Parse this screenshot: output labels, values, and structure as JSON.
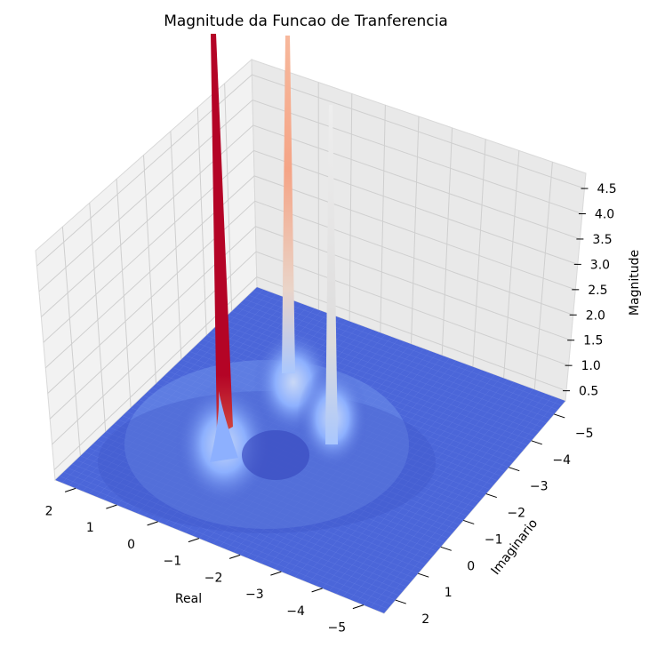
{
  "chart_data": {
    "type": "surface3d",
    "title": "Magnitude da Funcao de Tranferencia",
    "xlabel": "Real",
    "ylabel": "Imaginario",
    "zlabel": "Magnitude",
    "colormap": "coolwarm",
    "grid": true,
    "x_ticks": [
      "2",
      "1",
      "0",
      "−1",
      "−2",
      "−3",
      "−4",
      "−5"
    ],
    "y_ticks": [
      "−5",
      "−4",
      "−3",
      "−2",
      "−1",
      "0",
      "1",
      "2"
    ],
    "z_ticks": [
      "0.5",
      "1.0",
      "1.5",
      "2.0",
      "2.5",
      "3.0",
      "3.5",
      "4.0",
      "4.5"
    ],
    "xlim": [
      -5.5,
      2.5
    ],
    "ylim": [
      -5.5,
      2.5
    ],
    "zlim": [
      0.3,
      4.8
    ],
    "base_magnitude": 0.3,
    "peaks": [
      {
        "real": 0,
        "imag": -1.5,
        "magnitude_color": "#b40426"
      },
      {
        "real": -1.5,
        "imag": -1.5,
        "magnitude_color": "#f5a486"
      },
      {
        "real": -1.8,
        "imag": 0,
        "magnitude_color": "#dddcdc"
      }
    ],
    "colors": {
      "low": "#3b4cc0",
      "mid_low": "#8db0fe",
      "mid": "#dddcdc",
      "mid_high": "#f5a486",
      "high": "#b40426",
      "pane": "#f2f2f2",
      "grid": "#cfcfcf"
    }
  }
}
